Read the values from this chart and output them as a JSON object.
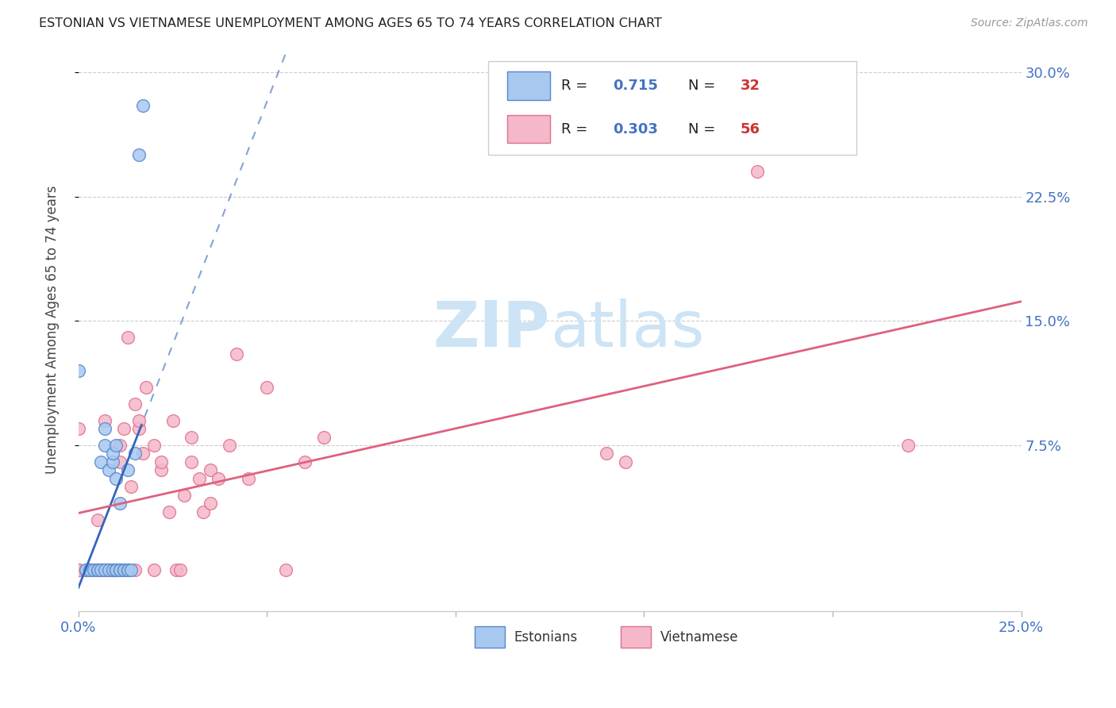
{
  "title": "ESTONIAN VS VIETNAMESE UNEMPLOYMENT AMONG AGES 65 TO 74 YEARS CORRELATION CHART",
  "source": "Source: ZipAtlas.com",
  "ylabel": "Unemployment Among Ages 65 to 74 years",
  "xlim": [
    0.0,
    0.25
  ],
  "ylim": [
    -0.025,
    0.315
  ],
  "xtick_positions": [
    0.0,
    0.05,
    0.1,
    0.15,
    0.2,
    0.25
  ],
  "xtick_labels": [
    "0.0%",
    "",
    "",
    "",
    "",
    "25.0%"
  ],
  "ytick_vals": [
    0.075,
    0.15,
    0.225,
    0.3
  ],
  "ytick_labels": [
    "7.5%",
    "15.0%",
    "22.5%",
    "30.0%"
  ],
  "r_estonian": 0.715,
  "n_estonian": 32,
  "r_vietnamese": 0.303,
  "n_vietnamese": 56,
  "estonian_fill": "#a8c8f0",
  "estonian_edge": "#5588cc",
  "vietnamese_fill": "#f5b8c8",
  "vietnamese_edge": "#e07090",
  "estonian_line_color": "#3366bb",
  "vietnamese_line_color": "#e06080",
  "title_color": "#222222",
  "source_color": "#999999",
  "watermark_zip": "ZIP",
  "watermark_atlas": "atlas",
  "watermark_color": "#cce4f5",
  "legend_r_color": "#4472c4",
  "legend_n_color": "#cc3333",
  "grid_color": "#cccccc",
  "estonian_x": [
    0.0,
    0.002,
    0.003,
    0.004,
    0.005,
    0.005,
    0.006,
    0.006,
    0.007,
    0.007,
    0.007,
    0.008,
    0.008,
    0.009,
    0.009,
    0.009,
    0.01,
    0.01,
    0.01,
    0.01,
    0.011,
    0.011,
    0.011,
    0.012,
    0.012,
    0.013,
    0.013,
    0.013,
    0.014,
    0.015,
    0.016,
    0.017
  ],
  "estonian_y": [
    0.12,
    0.0,
    0.0,
    0.0,
    0.0,
    0.0,
    0.0,
    0.065,
    0.0,
    0.075,
    0.085,
    0.0,
    0.06,
    0.0,
    0.065,
    0.07,
    0.0,
    0.0,
    0.055,
    0.075,
    0.0,
    0.0,
    0.04,
    0.0,
    0.0,
    0.0,
    0.0,
    0.06,
    0.0,
    0.07,
    0.25,
    0.28
  ],
  "vietnamese_x": [
    0.0,
    0.0,
    0.0,
    0.002,
    0.003,
    0.004,
    0.005,
    0.005,
    0.006,
    0.006,
    0.007,
    0.007,
    0.008,
    0.008,
    0.009,
    0.009,
    0.01,
    0.01,
    0.011,
    0.011,
    0.012,
    0.013,
    0.014,
    0.015,
    0.015,
    0.016,
    0.016,
    0.017,
    0.018,
    0.02,
    0.02,
    0.022,
    0.022,
    0.024,
    0.025,
    0.026,
    0.027,
    0.028,
    0.03,
    0.03,
    0.032,
    0.033,
    0.035,
    0.035,
    0.037,
    0.04,
    0.042,
    0.045,
    0.05,
    0.055,
    0.06,
    0.065,
    0.14,
    0.145,
    0.18,
    0.22
  ],
  "vietnamese_y": [
    0.0,
    0.0,
    0.085,
    0.0,
    0.0,
    0.0,
    0.0,
    0.03,
    0.0,
    0.0,
    0.0,
    0.09,
    0.0,
    0.0,
    0.0,
    0.0,
    0.0,
    0.0,
    0.065,
    0.075,
    0.085,
    0.14,
    0.05,
    0.0,
    0.1,
    0.085,
    0.09,
    0.07,
    0.11,
    0.0,
    0.075,
    0.06,
    0.065,
    0.035,
    0.09,
    0.0,
    0.0,
    0.045,
    0.065,
    0.08,
    0.055,
    0.035,
    0.04,
    0.06,
    0.055,
    0.075,
    0.13,
    0.055,
    0.11,
    0.0,
    0.065,
    0.08,
    0.07,
    0.065,
    0.24,
    0.075
  ]
}
